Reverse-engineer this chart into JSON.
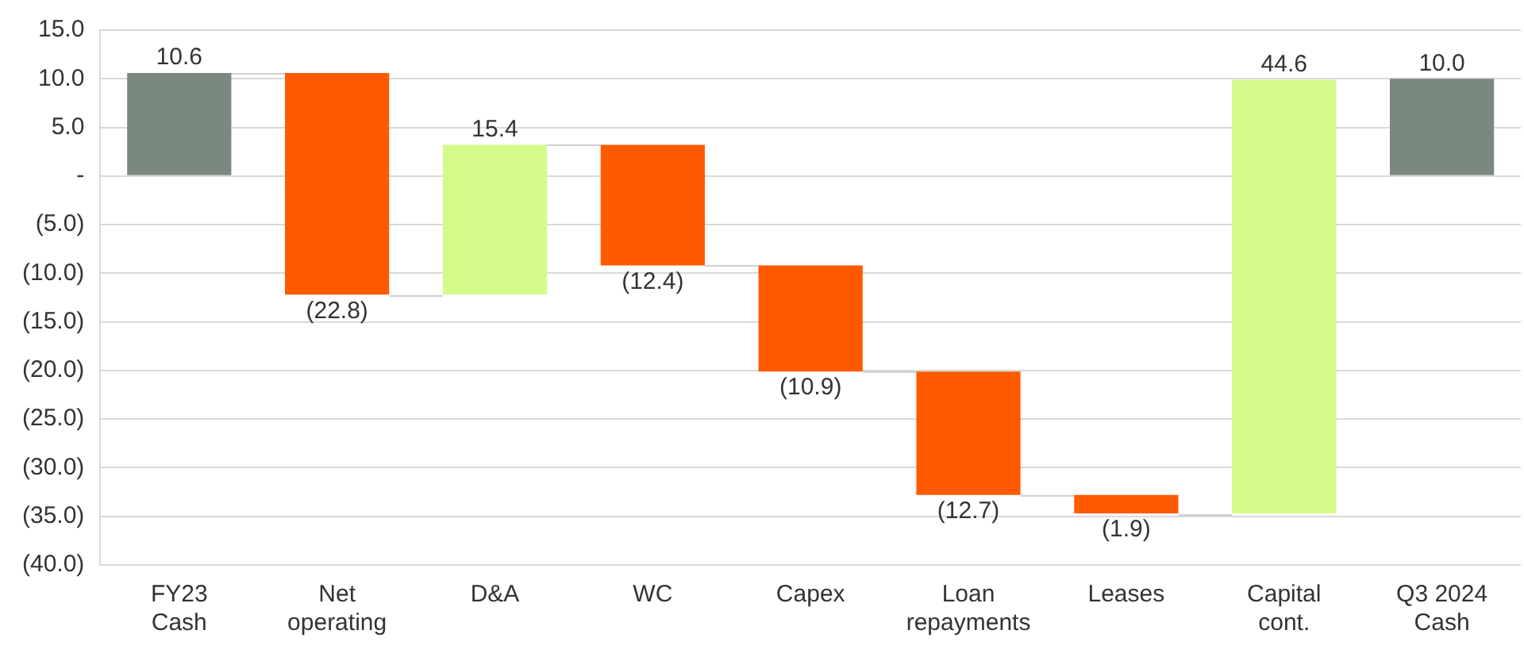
{
  "chart_data": {
    "type": "bar",
    "categories": [
      "FY23\nCash",
      "Net\noperating",
      "D&A",
      "WC",
      "Capex",
      "Loan\nrepayments",
      "Leases",
      "Capital\ncont.",
      "Q3 2024\nCash"
    ],
    "values": [
      10.6,
      -22.8,
      15.4,
      -12.4,
      -10.9,
      -12.7,
      -1.9,
      44.6,
      10.0
    ],
    "base": [
      0,
      10.6,
      -12.2,
      3.2,
      -9.2,
      -20.1,
      -32.8,
      -34.7,
      0
    ],
    "colors": [
      "#7b8880",
      "#ff5a00",
      "#d4fa8c",
      "#ff5a00",
      "#ff5a00",
      "#ff5a00",
      "#ff5a00",
      "#d4fa8c",
      "#7b8880"
    ],
    "value_labels": [
      "10.6",
      "(22.8)",
      "15.4",
      "(12.4)",
      "(10.9)",
      "(12.7)",
      "(1.9)",
      "44.6",
      "10.0"
    ],
    "ylim": [
      -40,
      15
    ],
    "yticks": [
      {
        "value": 15,
        "label": "15.0"
      },
      {
        "value": 10,
        "label": "10.0"
      },
      {
        "value": 5,
        "label": "5.0"
      },
      {
        "value": 0,
        "label": "-"
      },
      {
        "value": -5,
        "label": "(5.0)"
      },
      {
        "value": -10,
        "label": "(10.0)"
      },
      {
        "value": -15,
        "label": "(15.0)"
      },
      {
        "value": -20,
        "label": "(20.0)"
      },
      {
        "value": -25,
        "label": "(25.0)"
      },
      {
        "value": -30,
        "label": "(30.0)"
      },
      {
        "value": -35,
        "label": "(35.0)"
      },
      {
        "value": -40,
        "label": "(40.0)"
      }
    ],
    "grid": "y"
  }
}
